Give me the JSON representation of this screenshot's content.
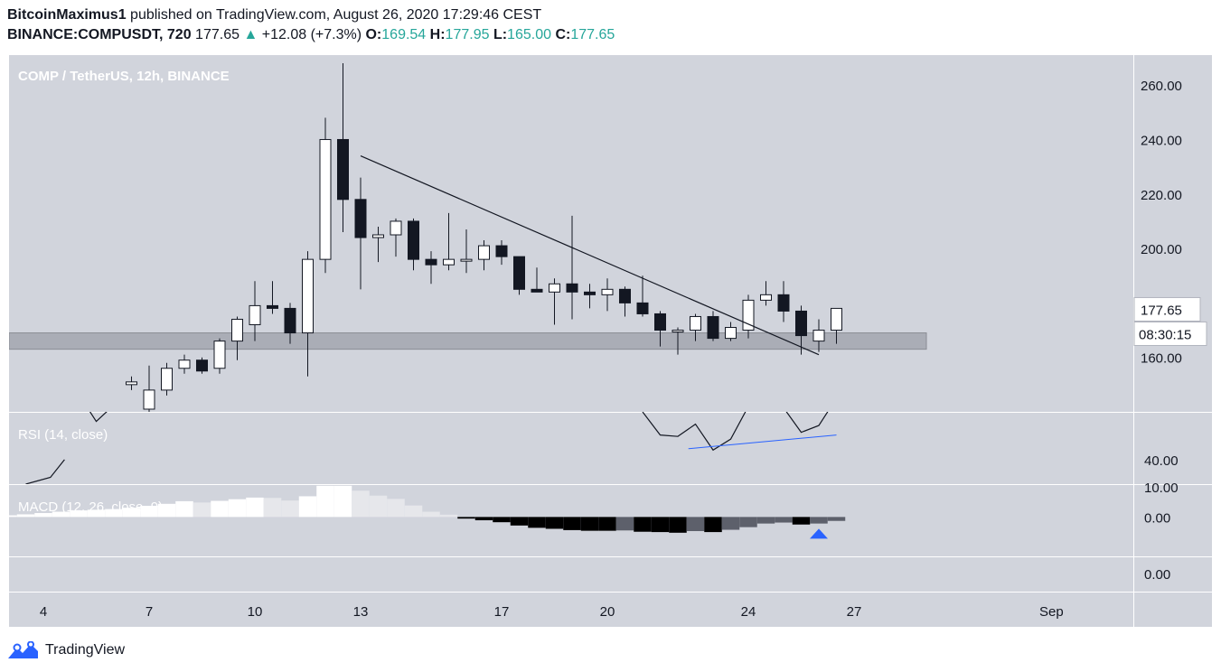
{
  "header": {
    "author": "BitcoinMaximus1",
    "published_text": "published on TradingView.com, August 26, 2020 17:29:46 CEST",
    "symbol": "BINANCE:COMPUSDT, 720",
    "last": "177.65",
    "change": "+12.08 (+7.3%)",
    "o_label": "O:",
    "o_value": "169.54",
    "h_label": "H:",
    "h_value": "177.95",
    "l_label": "L:",
    "l_value": "165.00",
    "c_label": "C:",
    "c_value": "177.65"
  },
  "footer": {
    "brand": "TradingView"
  },
  "colors": {
    "pane_bg": "#d1d4dc",
    "axis_bg": "#d1d4dc",
    "up_fill": "#ffffff",
    "down_fill": "#131722",
    "support_zone": "#a3a6af",
    "rsi_trendline": "#2962ff",
    "arrow": "#2962ff",
    "up_color": "#26a69a"
  },
  "chart_data": [
    {
      "type": "candlestick",
      "title": "COMP / TetherUS, 12h, BINANCE",
      "x_ticks": [
        "4",
        "7",
        "10",
        "13",
        "17",
        "20",
        "24",
        "27",
        "Sep"
      ],
      "y_ticks": [
        "260.00",
        "240.00",
        "220.00",
        "200.00",
        "160.00"
      ],
      "ylim": [
        140,
        271
      ],
      "price_label": "177.65",
      "countdown_label": "08:30:15",
      "support_zone": [
        163,
        169
      ],
      "trendline": {
        "from": [
          13,
          234
        ],
        "to": [
          26,
          161
        ]
      },
      "candles": [
        {
          "t": 6.5,
          "o": 150,
          "h": 153,
          "l": 148,
          "c": 151
        },
        {
          "t": 7.0,
          "o": 141,
          "h": 157,
          "l": 139,
          "c": 148
        },
        {
          "t": 7.5,
          "o": 148,
          "h": 158,
          "l": 146,
          "c": 156
        },
        {
          "t": 8.0,
          "o": 156,
          "h": 161,
          "l": 154,
          "c": 159
        },
        {
          "t": 8.5,
          "o": 159,
          "h": 160,
          "l": 154,
          "c": 155
        },
        {
          "t": 9.0,
          "o": 156,
          "h": 167,
          "l": 154,
          "c": 166
        },
        {
          "t": 9.5,
          "o": 166,
          "h": 175,
          "l": 159,
          "c": 174
        },
        {
          "t": 10.0,
          "o": 172,
          "h": 188,
          "l": 166,
          "c": 179
        },
        {
          "t": 10.5,
          "o": 179,
          "h": 188,
          "l": 176,
          "c": 178
        },
        {
          "t": 11.0,
          "o": 178,
          "h": 180,
          "l": 165,
          "c": 169
        },
        {
          "t": 11.5,
          "o": 169,
          "h": 199,
          "l": 153,
          "c": 196
        },
        {
          "t": 12.0,
          "o": 196,
          "h": 248,
          "l": 191,
          "c": 240
        },
        {
          "t": 12.5,
          "o": 240,
          "h": 268,
          "l": 206,
          "c": 218
        },
        {
          "t": 13.0,
          "o": 218,
          "h": 226,
          "l": 185,
          "c": 204
        },
        {
          "t": 13.5,
          "o": 204,
          "h": 208,
          "l": 195,
          "c": 205
        },
        {
          "t": 14.0,
          "o": 205,
          "h": 211,
          "l": 197,
          "c": 210
        },
        {
          "t": 14.5,
          "o": 210,
          "h": 211,
          "l": 192,
          "c": 196
        },
        {
          "t": 15.0,
          "o": 196,
          "h": 199,
          "l": 187,
          "c": 194
        },
        {
          "t": 15.5,
          "o": 194,
          "h": 213,
          "l": 192,
          "c": 196
        },
        {
          "t": 16.0,
          "o": 196,
          "h": 207,
          "l": 191,
          "c": 196
        },
        {
          "t": 16.5,
          "o": 196,
          "h": 203,
          "l": 192,
          "c": 201
        },
        {
          "t": 17.0,
          "o": 201,
          "h": 203,
          "l": 194,
          "c": 197
        },
        {
          "t": 17.5,
          "o": 197,
          "h": 197,
          "l": 183,
          "c": 185
        },
        {
          "t": 18.0,
          "o": 185,
          "h": 193,
          "l": 184,
          "c": 184
        },
        {
          "t": 18.5,
          "o": 184,
          "h": 189,
          "l": 172,
          "c": 187
        },
        {
          "t": 19.0,
          "o": 187,
          "h": 212,
          "l": 174,
          "c": 184
        },
        {
          "t": 19.5,
          "o": 184,
          "h": 187,
          "l": 178,
          "c": 183
        },
        {
          "t": 20.0,
          "o": 183,
          "h": 189,
          "l": 177,
          "c": 185
        },
        {
          "t": 20.5,
          "o": 185,
          "h": 186,
          "l": 175,
          "c": 180
        },
        {
          "t": 21.0,
          "o": 180,
          "h": 190,
          "l": 175,
          "c": 176
        },
        {
          "t": 21.5,
          "o": 176,
          "h": 177,
          "l": 164,
          "c": 170
        },
        {
          "t": 22.0,
          "o": 170,
          "h": 171,
          "l": 161,
          "c": 170
        },
        {
          "t": 22.5,
          "o": 170,
          "h": 176,
          "l": 166,
          "c": 175
        },
        {
          "t": 23.0,
          "o": 175,
          "h": 177,
          "l": 166,
          "c": 167
        },
        {
          "t": 23.5,
          "o": 167,
          "h": 173,
          "l": 166,
          "c": 171
        },
        {
          "t": 24.0,
          "o": 170,
          "h": 183,
          "l": 167,
          "c": 181
        },
        {
          "t": 24.5,
          "o": 181,
          "h": 188,
          "l": 179,
          "c": 183
        },
        {
          "t": 25.0,
          "o": 183,
          "h": 188,
          "l": 173,
          "c": 177
        },
        {
          "t": 25.5,
          "o": 177,
          "h": 179,
          "l": 161,
          "c": 168
        },
        {
          "t": 26.0,
          "o": 166,
          "h": 174,
          "l": 162,
          "c": 170
        },
        {
          "t": 26.5,
          "o": 170,
          "h": 178,
          "l": 165,
          "c": 178
        }
      ]
    },
    {
      "type": "line",
      "title": "RSI (14, close)",
      "y_ticks": [
        "40.00"
      ],
      "ylim": [
        22,
        75
      ],
      "x": [
        5.0,
        5.5,
        6.0,
        21.0,
        21.5,
        22.0,
        22.5,
        23.0,
        23.5,
        24.0,
        25.0,
        25.5,
        26.0,
        26.5
      ],
      "values": [
        88,
        68,
        80,
        75,
        58,
        57,
        66,
        47,
        55,
        79,
        78,
        60,
        65,
        85
      ],
      "lead_in": {
        "x": [
          3.5,
          4.2,
          4.6
        ],
        "values": [
          22,
          27,
          40
        ]
      },
      "trendline": {
        "from": [
          22.3,
          48
        ],
        "to": [
          26.5,
          58
        ]
      }
    },
    {
      "type": "bar",
      "title": "MACD (12, 26, close, 9)",
      "y_ticks": [
        "10.00",
        "0.00",
        "0.00"
      ],
      "ylim": [
        -12,
        10
      ],
      "histogram": [
        {
          "t": 3.0,
          "v": 0.5
        },
        {
          "t": 3.5,
          "v": 0.8
        },
        {
          "t": 4.0,
          "v": 1.2
        },
        {
          "t": 4.5,
          "v": 1.6
        },
        {
          "t": 5.0,
          "v": 2.0
        },
        {
          "t": 5.5,
          "v": 2.2
        },
        {
          "t": 6.0,
          "v": 2.4
        },
        {
          "t": 6.5,
          "v": 2.8
        },
        {
          "t": 7.0,
          "v": 3.4
        },
        {
          "t": 7.5,
          "v": 4.0
        },
        {
          "t": 8.0,
          "v": 4.8
        },
        {
          "t": 8.5,
          "v": 4.4
        },
        {
          "t": 9.0,
          "v": 4.9
        },
        {
          "t": 9.5,
          "v": 5.4
        },
        {
          "t": 10.0,
          "v": 5.9
        },
        {
          "t": 10.5,
          "v": 5.8
        },
        {
          "t": 11.0,
          "v": 5.0
        },
        {
          "t": 11.5,
          "v": 6.3
        },
        {
          "t": 12.0,
          "v": 9.5
        },
        {
          "t": 12.5,
          "v": 9.5
        },
        {
          "t": 13.0,
          "v": 8.0
        },
        {
          "t": 13.5,
          "v": 6.5
        },
        {
          "t": 14.0,
          "v": 5.5
        },
        {
          "t": 14.5,
          "v": 3.5
        },
        {
          "t": 15.0,
          "v": 1.6
        },
        {
          "t": 15.5,
          "v": 0.7
        },
        {
          "t": 16.0,
          "v": -0.5
        },
        {
          "t": 16.5,
          "v": -1.0
        },
        {
          "t": 17.0,
          "v": -1.6
        },
        {
          "t": 17.5,
          "v": -2.6
        },
        {
          "t": 18.0,
          "v": -3.3
        },
        {
          "t": 18.5,
          "v": -3.6
        },
        {
          "t": 19.0,
          "v": -4.0
        },
        {
          "t": 19.5,
          "v": -4.2
        },
        {
          "t": 20.0,
          "v": -4.2
        },
        {
          "t": 20.5,
          "v": -4.1
        },
        {
          "t": 21.0,
          "v": -4.5
        },
        {
          "t": 21.5,
          "v": -4.6
        },
        {
          "t": 22.0,
          "v": -4.8
        },
        {
          "t": 22.5,
          "v": -4.3
        },
        {
          "t": 23.0,
          "v": -4.6
        },
        {
          "t": 23.5,
          "v": -3.9
        },
        {
          "t": 24.0,
          "v": -3.1
        },
        {
          "t": 24.5,
          "v": -2.0
        },
        {
          "t": 25.0,
          "v": -1.7
        },
        {
          "t": 25.5,
          "v": -2.3
        },
        {
          "t": 26.0,
          "v": -2.0
        },
        {
          "t": 26.5,
          "v": -1.2
        }
      ],
      "signal_marker": {
        "t": 26.0
      }
    }
  ]
}
